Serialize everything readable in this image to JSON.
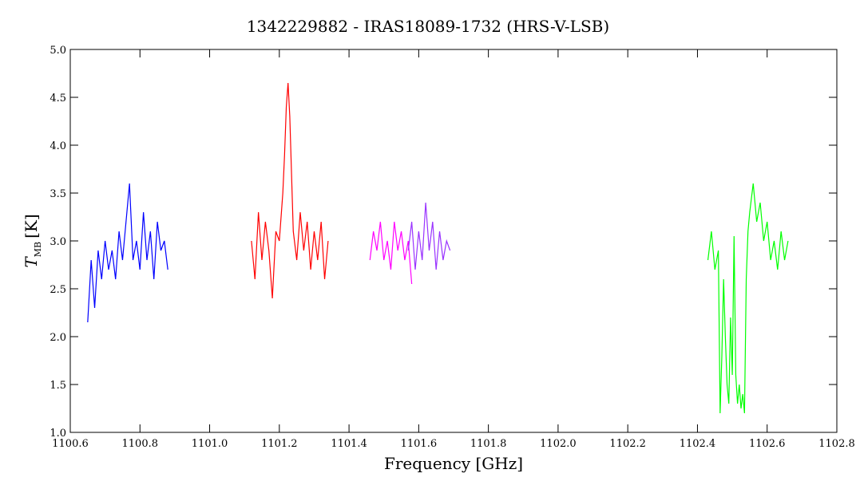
{
  "chart_data": {
    "type": "line",
    "title": "1342229882 - IRAS18089-1732 (HRS-V-LSB)",
    "xlabel": "Frequency [GHz]",
    "ylabel": "T",
    "ylabel_sub": "MB",
    "ylabel_unit": "[K]",
    "xlim": [
      1100.6,
      1102.8
    ],
    "xticks": [
      1100.6,
      1100.8,
      {
        "value": 1101.0,
        "label": "1101.0"
      },
      1101.2,
      1101.4,
      1101.6,
      1101.8,
      {
        "value": 1102.0,
        "label": "1102.0"
      },
      1102.2,
      1102.4,
      1102.6,
      1102.8
    ],
    "ylim": [
      1.0,
      5.0
    ],
    "yticks": [
      {
        "value": 1.0,
        "label": "1.0"
      },
      1.5,
      {
        "value": 2.0,
        "label": "2.0"
      },
      2.5,
      {
        "value": 3.0,
        "label": "3.0"
      },
      3.5,
      {
        "value": 4.0,
        "label": "4.0"
      },
      4.5,
      {
        "value": 5.0,
        "label": "5.0"
      }
    ],
    "series": [
      {
        "color": "#0000ff",
        "x": [
          1100.65,
          1100.66,
          1100.67,
          1100.68,
          1100.69,
          1100.7,
          1100.71,
          1100.72,
          1100.73,
          1100.74,
          1100.75,
          1100.76,
          1100.77,
          1100.78,
          1100.79,
          1100.8,
          1100.81,
          1100.82,
          1100.83,
          1100.84,
          1100.85,
          1100.86,
          1100.87,
          1100.88
        ],
        "values": [
          2.15,
          2.8,
          2.3,
          2.9,
          2.6,
          3.0,
          2.7,
          2.9,
          2.6,
          3.1,
          2.8,
          3.2,
          3.6,
          2.8,
          3.0,
          2.7,
          3.3,
          2.8,
          3.1,
          2.6,
          3.2,
          2.9,
          3.0,
          2.7
        ]
      },
      {
        "color": "#ff0000",
        "x": [
          1101.12,
          1101.13,
          1101.14,
          1101.15,
          1101.16,
          1101.17,
          1101.18,
          1101.19,
          1101.2,
          1101.21,
          1101.215,
          1101.22,
          1101.225,
          1101.23,
          1101.235,
          1101.24,
          1101.25,
          1101.26,
          1101.27,
          1101.28,
          1101.29,
          1101.3,
          1101.31,
          1101.32,
          1101.33,
          1101.34
        ],
        "values": [
          3.0,
          2.6,
          3.3,
          2.8,
          3.2,
          2.9,
          2.4,
          3.1,
          3.0,
          3.5,
          3.9,
          4.4,
          4.65,
          4.3,
          3.7,
          3.1,
          2.8,
          3.3,
          2.9,
          3.2,
          2.7,
          3.1,
          2.8,
          3.2,
          2.6,
          3.0
        ]
      },
      {
        "color": "#ff00ff",
        "x": [
          1101.46,
          1101.47,
          1101.48,
          1101.49,
          1101.5,
          1101.51,
          1101.52,
          1101.53,
          1101.54,
          1101.55,
          1101.56,
          1101.57,
          1101.58
        ],
        "values": [
          2.8,
          3.1,
          2.9,
          3.2,
          2.8,
          3.0,
          2.7,
          3.2,
          2.9,
          3.1,
          2.8,
          3.0,
          2.55
        ]
      },
      {
        "color": "#9933ff",
        "x": [
          1101.57,
          1101.58,
          1101.59,
          1101.6,
          1101.61,
          1101.62,
          1101.63,
          1101.64,
          1101.65,
          1101.66,
          1101.67,
          1101.68,
          1101.69
        ],
        "values": [
          2.9,
          3.2,
          2.7,
          3.1,
          2.8,
          3.4,
          2.9,
          3.2,
          2.7,
          3.1,
          2.8,
          3.0,
          2.9
        ]
      },
      {
        "color": "#00ff00",
        "x": [
          1102.43,
          1102.44,
          1102.45,
          1102.46,
          1102.465,
          1102.47,
          1102.475,
          1102.48,
          1102.485,
          1102.49,
          1102.495,
          1102.5,
          1102.505,
          1102.51,
          1102.515,
          1102.52,
          1102.525,
          1102.53,
          1102.535,
          1102.54,
          1102.545,
          1102.55,
          1102.56,
          1102.57,
          1102.58,
          1102.59,
          1102.6,
          1102.61,
          1102.62,
          1102.63,
          1102.64,
          1102.65,
          1102.66
        ],
        "values": [
          2.8,
          3.1,
          2.7,
          2.9,
          1.2,
          1.8,
          2.6,
          2.0,
          1.5,
          1.3,
          2.2,
          1.6,
          3.05,
          1.6,
          1.3,
          1.5,
          1.25,
          1.4,
          1.2,
          2.6,
          3.1,
          3.3,
          3.6,
          3.2,
          3.4,
          3.0,
          3.2,
          2.8,
          3.0,
          2.7,
          3.1,
          2.8,
          3.0
        ]
      }
    ]
  }
}
